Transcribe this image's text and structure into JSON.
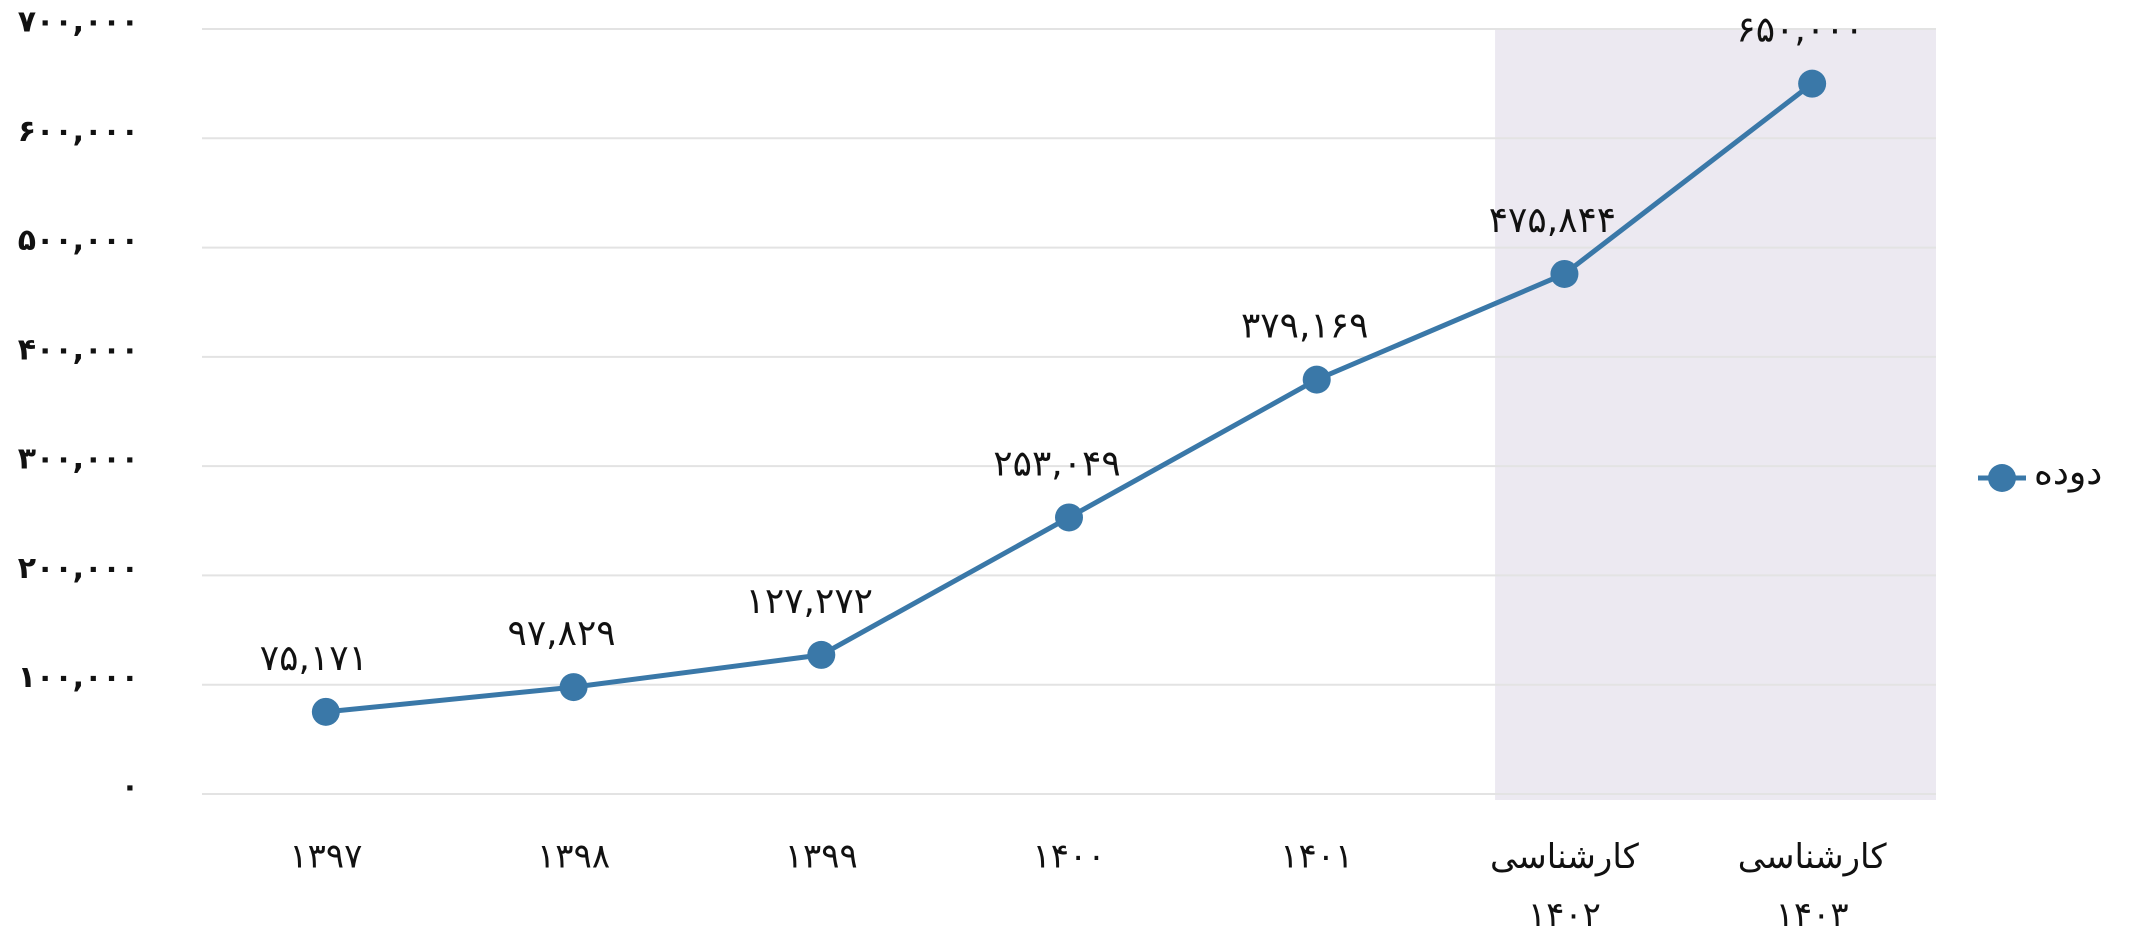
{
  "chart_data": {
    "type": "line",
    "categories": [
      "۱۳۹۷",
      "۱۳۹۸",
      "۱۳۹۹",
      "۱۴۰۰",
      "۱۴۰۱",
      "کارشناسی ۱۴۰۲",
      "کارشناسی ۱۴۰۳"
    ],
    "series": [
      {
        "name": "دوده",
        "color": "#3a78a8",
        "values": [
          75171,
          97829,
          127272,
          253049,
          379169,
          475844,
          650000
        ],
        "value_labels": [
          "۷۵,۱۷۱",
          "۹۷,۸۲۹",
          "۱۲۷,۲۷۲",
          "۲۵۳,۰۴۹",
          "۳۷۹,۱۶۹",
          "۴۷۵,۸۴۴",
          "۶۵۰,۰۰۰"
        ]
      }
    ],
    "ylim": [
      0,
      700000
    ],
    "yticks": [
      {
        "value": 0,
        "label": "۰"
      },
      {
        "value": 100000,
        "label": "۱۰۰,۰۰۰"
      },
      {
        "value": 200000,
        "label": "۲۰۰,۰۰۰"
      },
      {
        "value": 300000,
        "label": "۳۰۰,۰۰۰"
      },
      {
        "value": 400000,
        "label": "۴۰۰,۰۰۰"
      },
      {
        "value": 500000,
        "label": "۵۰۰,۰۰۰"
      },
      {
        "value": 600000,
        "label": "۶۰۰,۰۰۰"
      },
      {
        "value": 700000,
        "label": "۷۰۰,۰۰۰"
      }
    ],
    "grid": true,
    "legend": "right",
    "shaded_categories": [
      5,
      6
    ]
  }
}
